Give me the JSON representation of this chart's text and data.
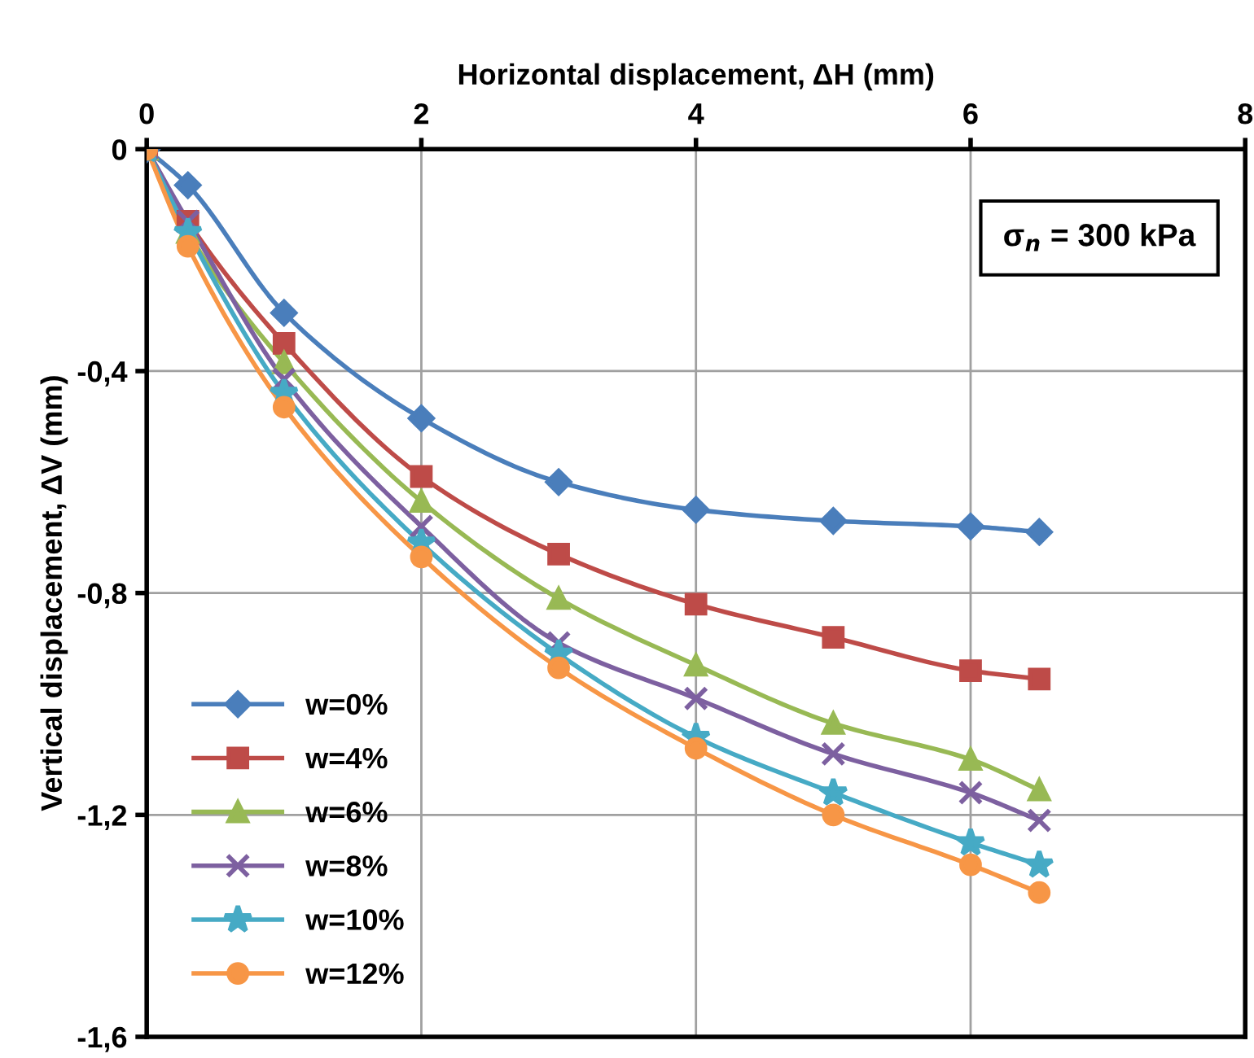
{
  "chart_data": {
    "type": "line",
    "xlabel": "Horizontal displacement, ΔH (mm)",
    "ylabel": "Vertical displacement, ΔV (mm)",
    "annotations": [
      "σ$_{n}$ = 300 kPa"
    ],
    "x": [
      0,
      0.3,
      1,
      2,
      3,
      4,
      5,
      6,
      6.5
    ],
    "xlim": [
      0,
      8
    ],
    "xticks": [
      0,
      2,
      4,
      6,
      8
    ],
    "ylim": [
      -1.6,
      0
    ],
    "yticks": [
      {
        "value": 0,
        "label": "0"
      },
      {
        "value": -0.4,
        "label": "-0,4"
      },
      {
        "value": -0.8,
        "label": "-0,8"
      },
      {
        "value": -1.2,
        "label": "-1,2"
      },
      {
        "value": -1.6,
        "label": "-1,6"
      }
    ],
    "grid": true,
    "legend": "bottom left",
    "line_style": "solid",
    "series": [
      {
        "name": "w=0%",
        "color": "#4a7ebb",
        "marker": "diamond",
        "values": [
          0,
          -0.065,
          -0.295,
          -0.485,
          -0.6,
          -0.65,
          -0.67,
          -0.68,
          -0.69
        ]
      },
      {
        "name": "w=4%",
        "color": "#be4b48",
        "marker": "square",
        "values": [
          0,
          -0.13,
          -0.35,
          -0.59,
          -0.73,
          -0.82,
          -0.88,
          -0.94,
          -0.955
        ]
      },
      {
        "name": "w=6%",
        "color": "#98b954",
        "marker": "triangle",
        "values": [
          0,
          -0.15,
          -0.385,
          -0.635,
          -0.81,
          -0.93,
          -1.035,
          -1.1,
          -1.155
        ]
      },
      {
        "name": "w=8%",
        "color": "#7d60a0",
        "marker": "cross",
        "values": [
          0,
          -0.13,
          -0.415,
          -0.68,
          -0.89,
          -0.99,
          -1.09,
          -1.16,
          -1.21
        ]
      },
      {
        "name": "w=10%",
        "color": "#46aac5",
        "marker": "star",
        "values": [
          0,
          -0.15,
          -0.44,
          -0.71,
          -0.91,
          -1.06,
          -1.16,
          -1.25,
          -1.29
        ]
      },
      {
        "name": "w=12%",
        "color": "#f79646",
        "marker": "circle",
        "values": [
          0,
          -0.175,
          -0.465,
          -0.735,
          -0.935,
          -1.08,
          -1.2,
          -1.29,
          -1.34
        ]
      }
    ]
  }
}
